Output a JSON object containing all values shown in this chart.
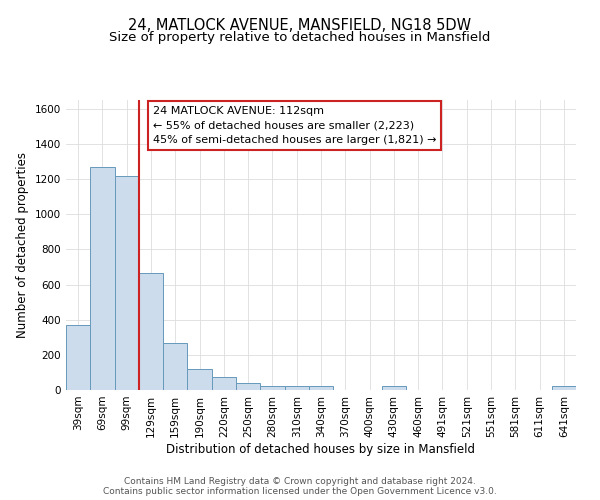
{
  "title": "24, MATLOCK AVENUE, MANSFIELD, NG18 5DW",
  "subtitle": "Size of property relative to detached houses in Mansfield",
  "xlabel": "Distribution of detached houses by size in Mansfield",
  "ylabel": "Number of detached properties",
  "categories": [
    "39sqm",
    "69sqm",
    "99sqm",
    "129sqm",
    "159sqm",
    "190sqm",
    "220sqm",
    "250sqm",
    "280sqm",
    "310sqm",
    "340sqm",
    "370sqm",
    "400sqm",
    "430sqm",
    "460sqm",
    "491sqm",
    "521sqm",
    "551sqm",
    "581sqm",
    "611sqm",
    "641sqm"
  ],
  "values": [
    370,
    1270,
    1220,
    665,
    270,
    120,
    75,
    40,
    22,
    20,
    20,
    0,
    0,
    20,
    0,
    0,
    0,
    0,
    0,
    0,
    20
  ],
  "bar_color": "#ccdcec",
  "bar_edge_color": "#6699bb",
  "vline_x_idx": 2.5,
  "vline_color": "#cc2222",
  "annotation_title": "24 MATLOCK AVENUE: 112sqm",
  "annotation_line1": "← 55% of detached houses are smaller (2,223)",
  "annotation_line2": "45% of semi-detached houses are larger (1,821) →",
  "annotation_box_facecolor": "#ffffff",
  "annotation_box_edgecolor": "#cc2222",
  "ylim": [
    0,
    1650
  ],
  "yticks": [
    0,
    200,
    400,
    600,
    800,
    1000,
    1200,
    1400,
    1600
  ],
  "footer1": "Contains HM Land Registry data © Crown copyright and database right 2024.",
  "footer2": "Contains public sector information licensed under the Open Government Licence v3.0.",
  "bg_color": "#ffffff",
  "plot_bg_color": "#ffffff",
  "grid_color": "#dddddd",
  "title_fontsize": 10.5,
  "subtitle_fontsize": 9.5,
  "axis_label_fontsize": 8.5,
  "tick_fontsize": 7.5,
  "annotation_fontsize": 8,
  "footer_fontsize": 6.5
}
